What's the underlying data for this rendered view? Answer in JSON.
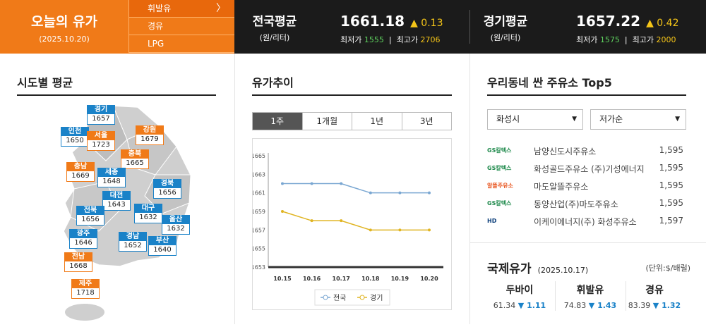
{
  "header": {
    "title": "오늘의 유가",
    "date": "(2025.10.20)",
    "fuels": [
      {
        "label": "휘발유",
        "active": true,
        "arrow": "〉"
      },
      {
        "label": "경유",
        "active": false
      },
      {
        "label": "LPG",
        "active": false
      }
    ],
    "national": {
      "title": "전국평균",
      "unit": "(원/리터)",
      "price": "1661.18",
      "change": "▲ 0.13",
      "min_label": "최저가",
      "min": "1555",
      "max_label": "최고가",
      "max": "2706",
      "sep": "|"
    },
    "gyeonggi": {
      "title": "경기평균",
      "unit": "(원/리터)",
      "price": "1657.22",
      "change": "▲ 0.42",
      "min_label": "최저가",
      "min": "1575",
      "max_label": "최고가",
      "max": "2000",
      "sep": "|"
    }
  },
  "regions": {
    "title": "시도별 평균",
    "items": [
      {
        "name": "경기",
        "price": "1657",
        "color": "blue"
      },
      {
        "name": "인천",
        "price": "1650",
        "color": "blue"
      },
      {
        "name": "서울",
        "price": "1723",
        "color": "orange"
      },
      {
        "name": "강원",
        "price": "1679",
        "color": "orange"
      },
      {
        "name": "충북",
        "price": "1665",
        "color": "orange"
      },
      {
        "name": "충남",
        "price": "1669",
        "color": "orange"
      },
      {
        "name": "세종",
        "price": "1648",
        "color": "blue"
      },
      {
        "name": "경북",
        "price": "1656",
        "color": "blue"
      },
      {
        "name": "대전",
        "price": "1643",
        "color": "blue"
      },
      {
        "name": "전북",
        "price": "1656",
        "color": "blue"
      },
      {
        "name": "대구",
        "price": "1632",
        "color": "blue"
      },
      {
        "name": "울산",
        "price": "1632",
        "color": "blue"
      },
      {
        "name": "광주",
        "price": "1646",
        "color": "blue"
      },
      {
        "name": "경남",
        "price": "1652",
        "color": "blue"
      },
      {
        "name": "부산",
        "price": "1640",
        "color": "blue"
      },
      {
        "name": "전남",
        "price": "1668",
        "color": "orange"
      },
      {
        "name": "제주",
        "price": "1718",
        "color": "orange"
      }
    ]
  },
  "trend": {
    "title": "유가추이",
    "tabs": [
      "1주",
      "1개월",
      "1년",
      "3년"
    ],
    "active_tab": 0
  },
  "chart_data": {
    "type": "line",
    "categories": [
      "10.15",
      "10.16",
      "10.17",
      "10.18",
      "10.19",
      "10.20"
    ],
    "series": [
      {
        "name": "전국",
        "color": "#7aa7d2",
        "values": [
          1662,
          1662,
          1662,
          1661,
          1661,
          1661
        ]
      },
      {
        "name": "경기",
        "color": "#e0b422",
        "values": [
          1659,
          1658,
          1658,
          1657,
          1657,
          1657
        ]
      }
    ],
    "ylim": [
      1653,
      1665
    ],
    "yticks": [
      "1665",
      "1663",
      "1661",
      "1659",
      "1657",
      "1655",
      "1653"
    ],
    "grid": false,
    "legend": "bottom"
  },
  "top5": {
    "title": "우리동네 싼 주유소 Top5",
    "region_select": "화성시",
    "sort_select": "저가순",
    "stations": [
      {
        "brand": "GS칼텍스",
        "brand_color": "#1f8a4c",
        "name": "남양신도시주유소",
        "price": "1,595"
      },
      {
        "brand": "GS칼텍스",
        "brand_color": "#1f8a4c",
        "name": "화성골드주유소 (주)기성에너지",
        "price": "1,595"
      },
      {
        "brand": "알뜰주유소",
        "brand_color": "#e8541d",
        "name": "마도알뜰주유소",
        "price": "1,595"
      },
      {
        "brand": "GS칼텍스",
        "brand_color": "#1f8a4c",
        "name": "동양산업(주)마도주유소",
        "price": "1,595"
      },
      {
        "brand": "HD",
        "brand_color": "#0a3d7a",
        "name": "이케이에너지(주) 화성주유소",
        "price": "1,597"
      }
    ]
  },
  "intl": {
    "title": "국제유가",
    "date": "(2025.10.17)",
    "unit": "(단위:$/배럴)",
    "items": [
      {
        "name": "두바이",
        "price": "61.34",
        "change": "▼ 1.11"
      },
      {
        "name": "휘발유",
        "price": "74.83",
        "change": "▼ 1.43"
      },
      {
        "name": "경유",
        "price": "83.39",
        "change": "▼ 1.32"
      }
    ]
  }
}
